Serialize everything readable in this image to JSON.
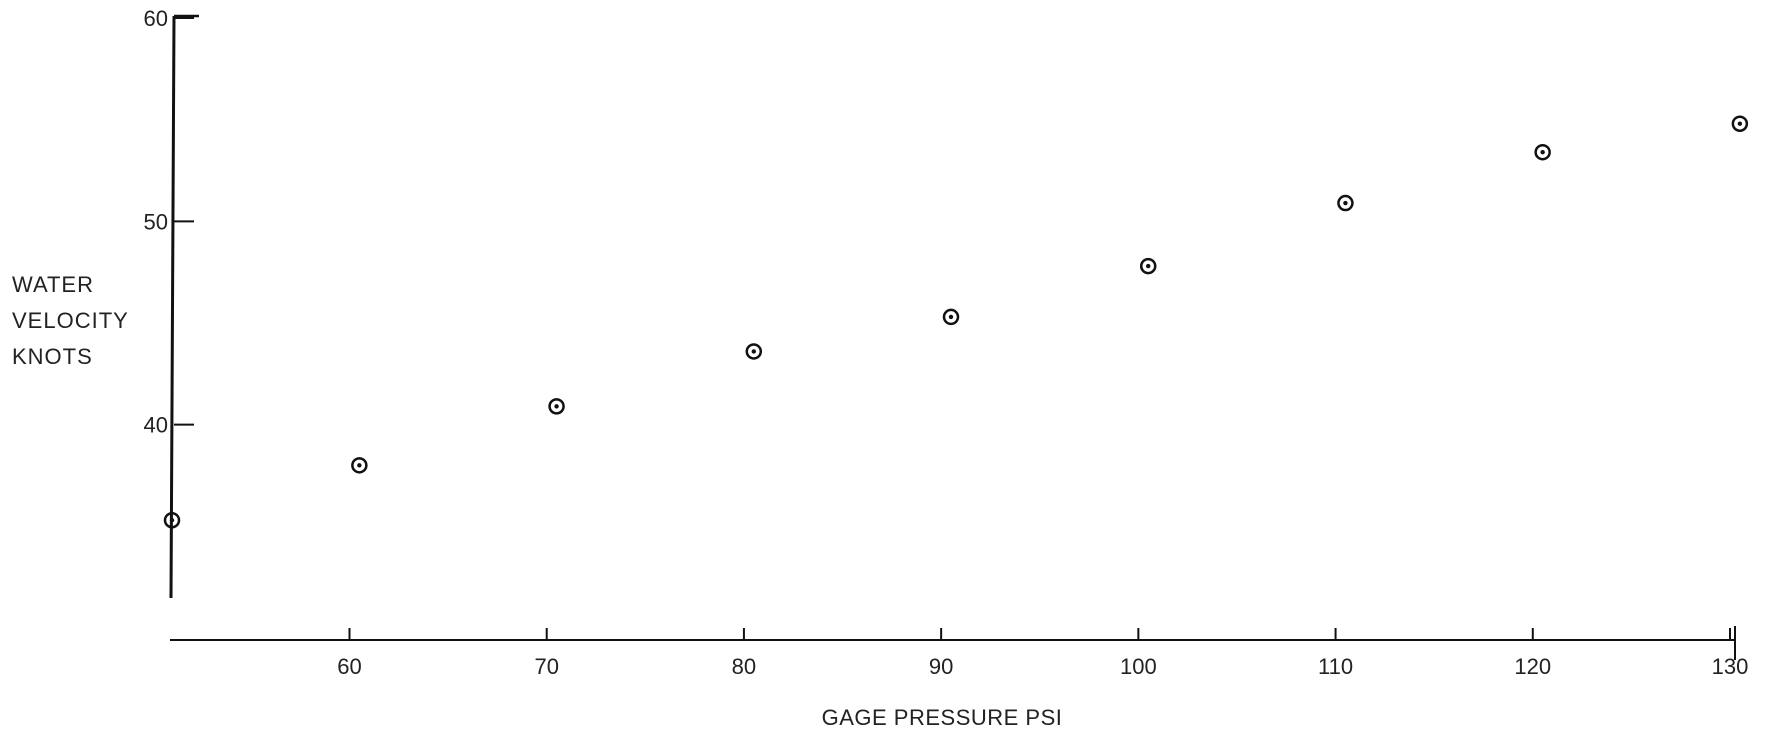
{
  "chart_data": {
    "type": "scatter",
    "title": "",
    "xlabel": "GAGE PRESSURE PSI",
    "ylabel_lines": [
      "WATER",
      "VELOCITY",
      "KNOTS"
    ],
    "xlim": [
      51,
      130
    ],
    "ylim": [
      30,
      60
    ],
    "xticks": [
      {
        "value": 60,
        "label": "60"
      },
      {
        "value": 70,
        "label": "70"
      },
      {
        "value": 80,
        "label": "80"
      },
      {
        "value": 90,
        "label": "90"
      },
      {
        "value": 100,
        "label": "100"
      },
      {
        "value": 110,
        "label": "110"
      },
      {
        "value": 120,
        "label": "120"
      },
      {
        "value": 130,
        "label": "130"
      }
    ],
    "yticks": [
      {
        "value": 40,
        "label": "40"
      },
      {
        "value": 50,
        "label": "50"
      },
      {
        "value": 60,
        "label": "60"
      }
    ],
    "grid": false,
    "legend": "none",
    "series": [
      {
        "marker": "circled-dot",
        "color": "#111111",
        "points": [
          {
            "x": 51,
            "y": 35.3
          },
          {
            "x": 60.5,
            "y": 38
          },
          {
            "x": 70.5,
            "y": 40.9
          },
          {
            "x": 80.5,
            "y": 43.6
          },
          {
            "x": 90.5,
            "y": 45.3
          },
          {
            "x": 100.5,
            "y": 47.8
          },
          {
            "x": 110.5,
            "y": 50.9
          },
          {
            "x": 120.5,
            "y": 53.4
          },
          {
            "x": 130.5,
            "y": 54.8
          }
        ]
      }
    ]
  }
}
